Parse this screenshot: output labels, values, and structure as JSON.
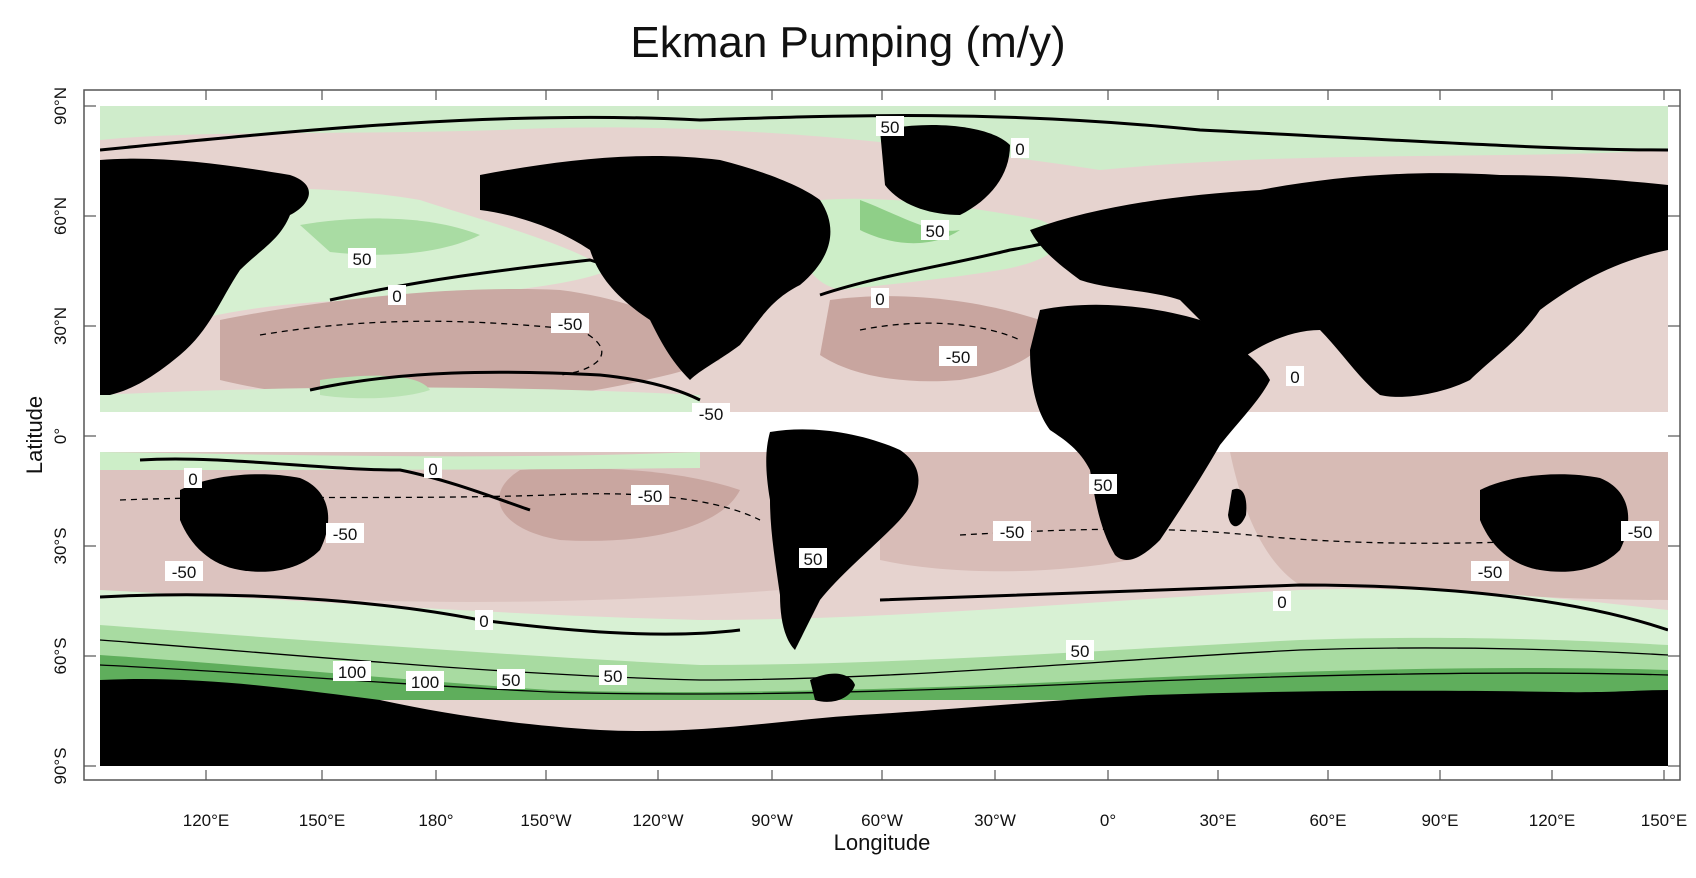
{
  "title": "Ekman Pumping (m/y)",
  "axes": {
    "xlabel": "Longitude",
    "ylabel": "Latitude",
    "x_ticks": [
      "120°E",
      "150°E",
      "180°",
      "150°W",
      "120°W",
      "90°W",
      "60°W",
      "30°W",
      "0°",
      "30°E",
      "60°E",
      "90°E",
      "120°E",
      "150°E"
    ],
    "y_ticks": [
      "90°N",
      "60°N",
      "30°N",
      "0°",
      "30°S",
      "60°S",
      "90°S"
    ]
  },
  "contour_labels": [
    "50",
    "0",
    "50",
    "50",
    "0",
    "0",
    "-50",
    "-50",
    "0",
    "-50",
    "0",
    "0",
    "-50",
    "-50",
    "50",
    "-50",
    "-50",
    "-50",
    "50",
    "0",
    "-50",
    "0",
    "50",
    "100",
    "100",
    "50",
    "50"
  ],
  "colors": {
    "land": "#000000",
    "upwelling_light": "#dff3dc",
    "upwelling_mid": "#a8dca1",
    "upwelling_strong": "#3f9b43",
    "downwelling_light": "#ead9d6",
    "downwelling_mid": "#cdaaa4",
    "downwelling_strong": "#9a6e68",
    "masked_equator": "#ffffff"
  }
}
